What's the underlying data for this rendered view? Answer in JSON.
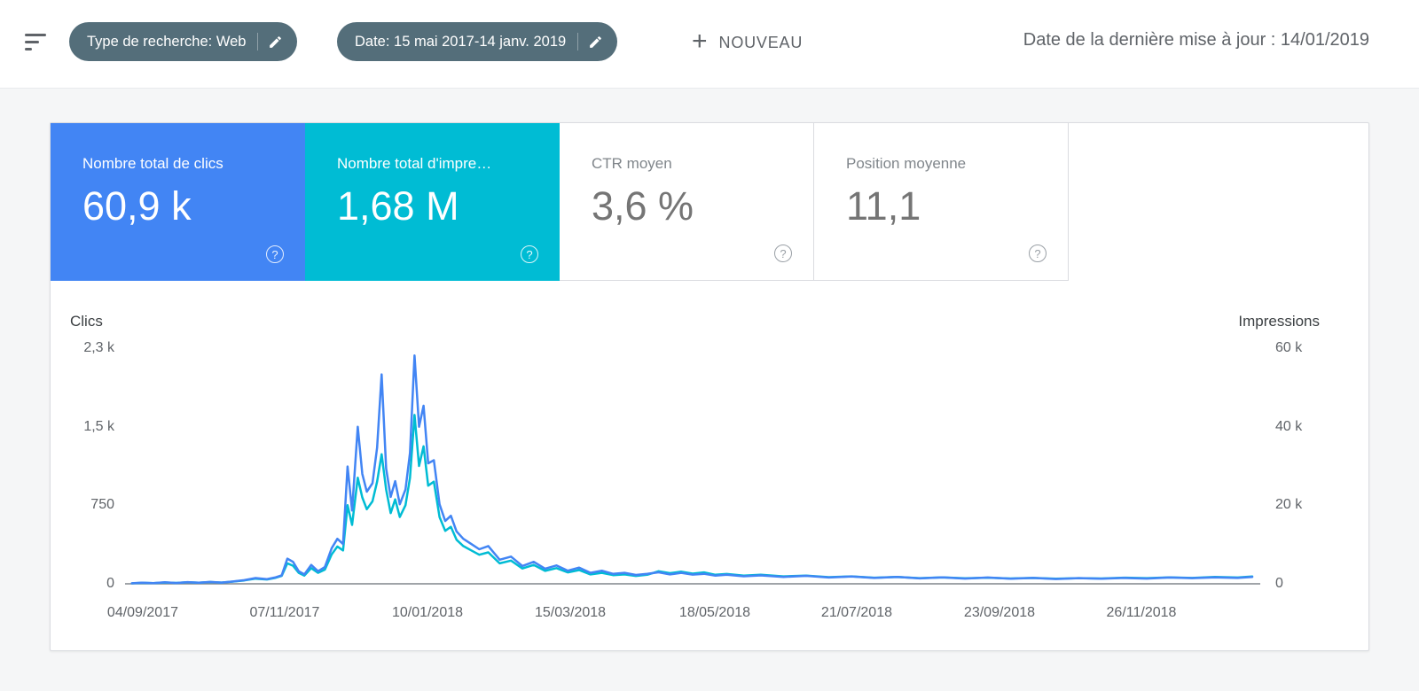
{
  "ui": {
    "help_glyph": "?"
  },
  "header": {
    "chips": [
      {
        "label": "Type de recherche: Web"
      },
      {
        "label": "Date: 15 mai 2017-14 janv. 2019"
      }
    ],
    "new_button": {
      "plus": "+",
      "label": "NOUVEAU"
    },
    "last_update": "Date de la dernière mise à jour : 14/01/2019"
  },
  "cards": [
    {
      "title": "Nombre total de clics",
      "value": "60,9 k",
      "color": "#4285f4",
      "selected": true
    },
    {
      "title": "Nombre total d'impre…",
      "value": "1,68 M",
      "color": "#00bcd4",
      "selected": true
    },
    {
      "title": "CTR moyen",
      "value": "3,6 %",
      "color": "",
      "selected": false
    },
    {
      "title": "Position moyenne",
      "value": "11,1",
      "color": "",
      "selected": false
    }
  ],
  "chart_data": {
    "type": "line",
    "title": "",
    "grid": false,
    "legend": "none",
    "left_axis": {
      "label": "Clics",
      "max": 2250,
      "ticks": [
        {
          "v": 0,
          "label": "0"
        },
        {
          "v": 750,
          "label": "750"
        },
        {
          "v": 1500,
          "label": "1,5 k"
        },
        {
          "v": 2250,
          "label": "2,3 k"
        }
      ]
    },
    "right_axis": {
      "label": "Impressions",
      "max": 60000,
      "ticks": [
        {
          "v": 0,
          "label": "0"
        },
        {
          "v": 20000,
          "label": "20 k"
        },
        {
          "v": 40000,
          "label": "40 k"
        },
        {
          "v": 60000,
          "label": "60 k"
        }
      ]
    },
    "x_ticks": [
      {
        "pos": 0.0156,
        "label": "04/09/2017"
      },
      {
        "pos": 0.1406,
        "label": "07/11/2017"
      },
      {
        "pos": 0.2664,
        "label": "10/01/2018"
      },
      {
        "pos": 0.3922,
        "label": "15/03/2018"
      },
      {
        "pos": 0.5195,
        "label": "18/05/2018"
      },
      {
        "pos": 0.6445,
        "label": "21/07/2018"
      },
      {
        "pos": 0.7703,
        "label": "23/09/2018"
      },
      {
        "pos": 0.8953,
        "label": "26/11/2018"
      }
    ],
    "x": [
      0.006,
      0.015,
      0.025,
      0.035,
      0.045,
      0.055,
      0.065,
      0.075,
      0.085,
      0.095,
      0.105,
      0.115,
      0.125,
      0.132,
      0.138,
      0.143,
      0.148,
      0.153,
      0.158,
      0.164,
      0.17,
      0.176,
      0.182,
      0.187,
      0.192,
      0.196,
      0.2,
      0.205,
      0.209,
      0.213,
      0.218,
      0.222,
      0.226,
      0.23,
      0.234,
      0.238,
      0.242,
      0.247,
      0.251,
      0.255,
      0.259,
      0.263,
      0.267,
      0.272,
      0.277,
      0.282,
      0.287,
      0.292,
      0.298,
      0.305,
      0.312,
      0.32,
      0.33,
      0.34,
      0.35,
      0.36,
      0.37,
      0.38,
      0.39,
      0.4,
      0.41,
      0.42,
      0.43,
      0.44,
      0.45,
      0.46,
      0.47,
      0.48,
      0.49,
      0.5,
      0.51,
      0.52,
      0.53,
      0.545,
      0.56,
      0.58,
      0.6,
      0.62,
      0.64,
      0.66,
      0.68,
      0.7,
      0.72,
      0.74,
      0.76,
      0.78,
      0.8,
      0.82,
      0.84,
      0.86,
      0.88,
      0.9,
      0.92,
      0.94,
      0.96,
      0.98,
      0.993
    ],
    "series": [
      {
        "name": "Impressions",
        "axis": "right",
        "color": "#00bcd4",
        "values": [
          120,
          250,
          160,
          340,
          220,
          400,
          260,
          450,
          320,
          560,
          850,
          1300,
          1100,
          1500,
          2000,
          5200,
          4600,
          2800,
          2100,
          4000,
          2800,
          3600,
          7500,
          9500,
          8500,
          20000,
          15000,
          27000,
          22000,
          19000,
          21000,
          26000,
          33000,
          24000,
          18000,
          21500,
          17000,
          20000,
          27000,
          43000,
          30000,
          35000,
          25000,
          26000,
          17000,
          13500,
          14500,
          11200,
          9600,
          8500,
          7400,
          8000,
          5200,
          5900,
          3900,
          4800,
          3300,
          4000,
          2900,
          3500,
          2400,
          2800,
          2200,
          2400,
          2000,
          2300,
          3200,
          2700,
          3100,
          2600,
          2900,
          2300,
          2500,
          2100,
          2300,
          1900,
          2100,
          1700,
          1900,
          1550,
          1750,
          1450,
          1650,
          1400,
          1550,
          1350,
          1500,
          1300,
          1450,
          1350,
          1550,
          1450,
          1650,
          1500,
          1750,
          1600,
          1850
        ]
      },
      {
        "name": "Clics",
        "axis": "left",
        "color": "#4285f4",
        "values": [
          5,
          10,
          6,
          14,
          8,
          16,
          10,
          18,
          12,
          22,
          35,
          55,
          45,
          60,
          80,
          240,
          210,
          120,
          90,
          180,
          120,
          160,
          340,
          430,
          380,
          1120,
          700,
          1500,
          1050,
          880,
          960,
          1300,
          2000,
          1100,
          830,
          980,
          760,
          900,
          1250,
          2180,
          1500,
          1700,
          1150,
          1180,
          760,
          600,
          650,
          500,
          430,
          380,
          330,
          360,
          230,
          260,
          170,
          210,
          145,
          175,
          125,
          155,
          105,
          125,
          95,
          105,
          85,
          95,
          110,
          90,
          105,
          88,
          96,
          78,
          86,
          72,
          80,
          66,
          76,
          60,
          70,
          56,
          66,
          52,
          62,
          50,
          60,
          48,
          56,
          46,
          54,
          48,
          56,
          50,
          60,
          54,
          62,
          56,
          66
        ]
      }
    ]
  }
}
